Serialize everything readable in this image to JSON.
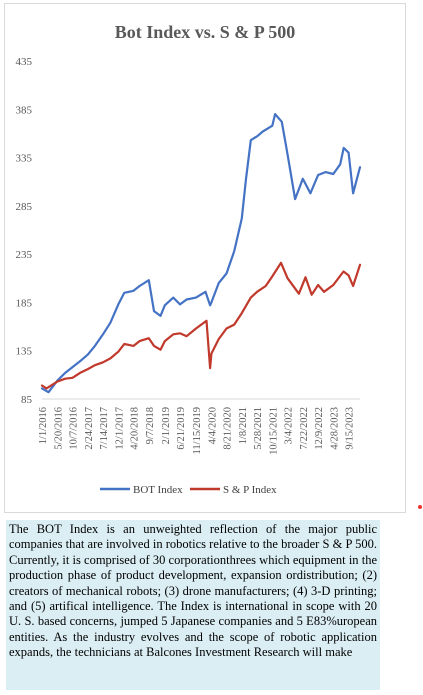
{
  "chart_data": {
    "type": "line",
    "title": "Bot Index vs. S & P 500",
    "ylim": [
      85,
      435
    ],
    "y_ticks": [
      85,
      135,
      185,
      235,
      285,
      335,
      385,
      435
    ],
    "x_tick_labels": [
      "1/1/2016",
      "5/20/2016",
      "10/7/2016",
      "2/24/2017",
      "7/14/2017",
      "12/1/2017",
      "4/20/2018",
      "9/7/2018",
      "2/1/2019",
      "6/21/2019",
      "11/15/2019",
      "4/4/2020",
      "8/21/2020",
      "1/8/2021",
      "5/28/2021",
      "10/15/2021",
      "3/4/2022",
      "7/22/2022",
      "12/9/2022",
      "4/28/2023",
      "9/15/2023"
    ],
    "legend_position": "bottom",
    "grid": false,
    "series": [
      {
        "name": "BOT Index",
        "color": "#4472c4",
        "x": [
          "1/1/2016",
          "3/1/2016",
          "5/20/2016",
          "8/1/2016",
          "10/7/2016",
          "12/15/2016",
          "2/24/2017",
          "5/1/2017",
          "7/14/2017",
          "9/20/2017",
          "12/1/2017",
          "1/25/2018",
          "4/20/2018",
          "6/15/2018",
          "9/7/2018",
          "10/25/2018",
          "12/24/2018",
          "2/1/2019",
          "4/20/2019",
          "6/21/2019",
          "8/20/2019",
          "11/15/2019",
          "2/10/2020",
          "3/23/2020",
          "4/4/2020",
          "6/10/2020",
          "8/21/2020",
          "10/30/2020",
          "1/8/2021",
          "2/15/2021",
          "4/1/2021",
          "5/28/2021",
          "7/20/2021",
          "10/15/2021",
          "11/10/2021",
          "1/10/2022",
          "3/4/2022",
          "5/12/2022",
          "7/22/2022",
          "9/30/2022",
          "12/9/2022",
          "2/15/2023",
          "4/28/2023",
          "6/30/2023",
          "8/1/2023",
          "9/15/2023",
          "10/27/2023",
          "12/29/2023"
        ],
        "y": [
          96,
          92,
          104,
          112,
          118,
          124,
          131,
          140,
          152,
          164,
          183,
          195,
          197,
          202,
          208,
          176,
          171,
          182,
          190,
          183,
          188,
          190,
          196,
          182,
          185,
          205,
          215,
          238,
          272,
          312,
          353,
          357,
          362,
          368,
          380,
          372,
          338,
          292,
          313,
          298,
          317,
          320,
          318,
          328,
          345,
          340,
          298,
          325
        ]
      },
      {
        "name": "S & P Index",
        "color": "#c0392b",
        "x": [
          "1/1/2016",
          "2/11/2016",
          "5/20/2016",
          "8/1/2016",
          "10/7/2016",
          "12/15/2016",
          "2/24/2017",
          "5/1/2017",
          "7/14/2017",
          "9/20/2017",
          "12/1/2017",
          "1/25/2018",
          "4/20/2018",
          "6/15/2018",
          "9/7/2018",
          "10/25/2018",
          "12/24/2018",
          "2/1/2019",
          "4/20/2019",
          "6/21/2019",
          "8/20/2019",
          "11/15/2019",
          "2/19/2020",
          "3/23/2020",
          "4/4/2020",
          "6/10/2020",
          "8/21/2020",
          "10/30/2020",
          "1/8/2021",
          "4/1/2021",
          "5/28/2021",
          "8/15/2021",
          "10/15/2021",
          "1/3/2022",
          "3/4/2022",
          "6/16/2022",
          "8/16/2022",
          "10/12/2022",
          "12/9/2022",
          "2/2/2023",
          "4/28/2023",
          "7/31/2023",
          "9/15/2023",
          "10/27/2023",
          "12/29/2023"
        ],
        "y": [
          99,
          96,
          103,
          106,
          107,
          112,
          116,
          120,
          123,
          127,
          134,
          142,
          140,
          145,
          148,
          140,
          136,
          145,
          152,
          153,
          150,
          158,
          166,
          117,
          132,
          147,
          158,
          162,
          174,
          190,
          196,
          202,
          212,
          226,
          210,
          194,
          211,
          193,
          203,
          196,
          203,
          217,
          213,
          202,
          224
        ]
      }
    ]
  },
  "body_text": "The BOT Index is an unweighted reflection of the major public companies that are involved in robotics relative to the broader S & P 500. Currently, it is comprised of 30 corporationthrees which equipment in the production phase of product development, expansion ordistribution; (2) creators of mechanical robots; (3) drone manufacturers; (4) 3-D printing; and (5) artifical intelligence. The Index is international in scope with 20 U. S. based concerns, jumped 5 Japanese companies and 5 E83%uropean entities. As the industry evolves and the scope of robotic application expands, the technicians at Balcones Investment Research will make"
}
